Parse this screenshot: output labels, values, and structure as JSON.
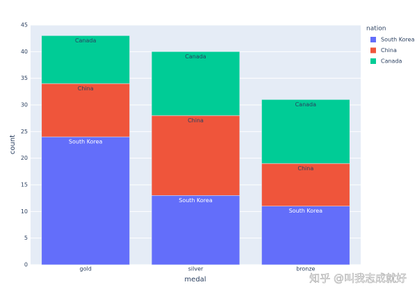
{
  "chart_data": {
    "type": "stacked_bar",
    "x_label": "medal",
    "y_label": "count",
    "legend_title": "nation",
    "categories": [
      "gold",
      "silver",
      "bronze"
    ],
    "series": [
      {
        "name": "South Korea",
        "color": "#636efa",
        "values": [
          24,
          13,
          11
        ]
      },
      {
        "name": "China",
        "color": "#ef553b",
        "values": [
          10,
          15,
          8
        ]
      },
      {
        "name": "Canada",
        "color": "#00cc96",
        "values": [
          9,
          12,
          12
        ]
      }
    ],
    "ylim": [
      0,
      45
    ],
    "yticks": [
      0,
      5,
      10,
      15,
      20,
      25,
      30,
      35,
      40,
      45
    ],
    "grid": true,
    "legend_position": "right",
    "watermark": "知乎 @叫我志成就好"
  }
}
